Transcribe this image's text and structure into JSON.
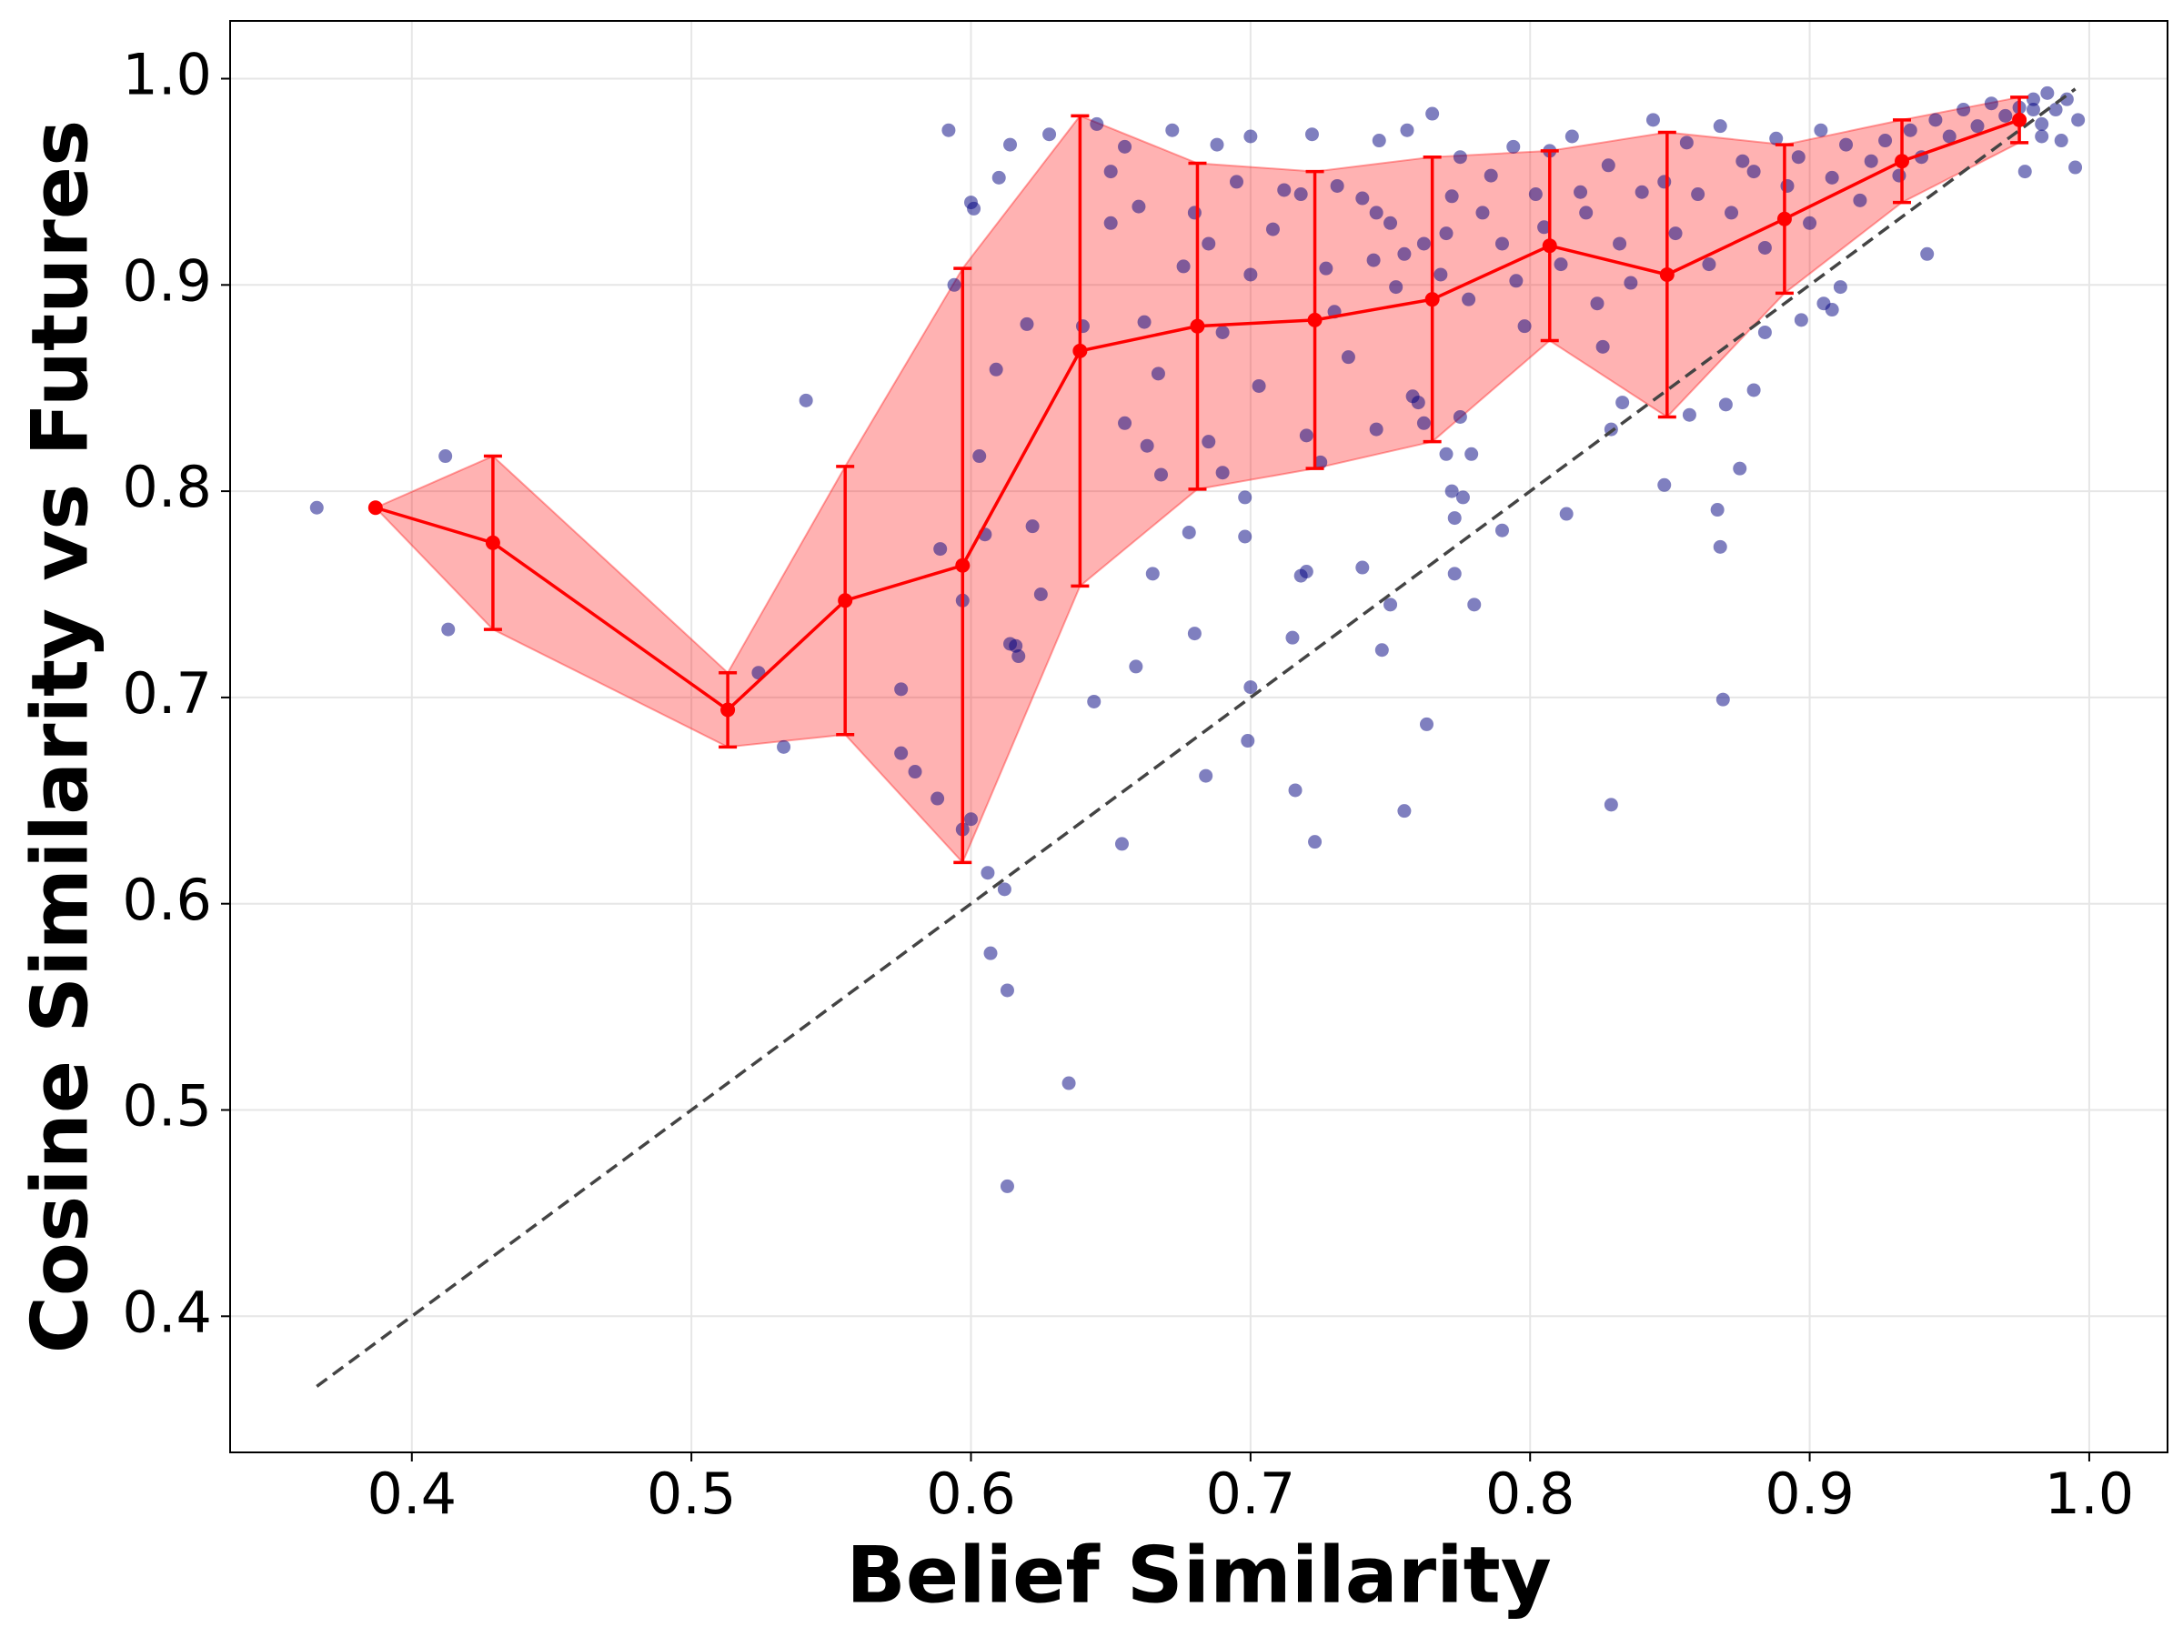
{
  "chart_data": {
    "type": "scatter",
    "xlabel": "Belief Similarity",
    "ylabel": "Cosine Similarity vs Futures",
    "xlim": [
      0.335,
      1.028
    ],
    "ylim": [
      0.334,
      1.028
    ],
    "xticks": [
      0.4,
      0.5,
      0.6,
      0.7,
      0.8,
      0.9,
      {
        "value": 1,
        "label": "1.0"
      }
    ],
    "yticks": [
      0.4,
      0.5,
      0.6,
      0.7,
      0.8,
      0.9,
      {
        "value": 1,
        "label": "1.0"
      }
    ],
    "grid": true,
    "scatter": {
      "color": "#000080",
      "x": [
        0.366,
        0.412,
        0.413,
        0.541,
        0.533,
        0.524,
        0.575,
        0.575,
        0.58,
        0.588,
        0.589,
        0.592,
        0.594,
        0.597,
        0.597,
        0.6,
        0.6,
        0.601,
        0.603,
        0.605,
        0.606,
        0.607,
        0.609,
        0.61,
        0.612,
        0.613,
        0.613,
        0.614,
        0.614,
        0.616,
        0.617,
        0.62,
        0.622,
        0.625,
        0.628,
        0.635,
        0.644,
        0.654,
        0.659,
        0.665,
        0.678,
        0.68,
        0.684,
        0.698,
        0.698,
        0.699,
        0.7,
        0.715,
        0.716,
        0.718,
        0.72,
        0.723,
        0.74,
        0.747,
        0.75,
        0.755,
        0.763,
        0.77,
        0.772,
        0.773,
        0.773,
        0.776,
        0.779,
        0.78,
        0.79,
        0.813,
        0.829,
        0.829,
        0.848,
        0.867,
        0.868,
        0.869,
        0.87,
        0.875,
        0.88,
        0.884,
        0.942,
        0.905,
        0.908,
        0.911,
        0.897,
        0.857,
        0.833,
        0.645,
        0.65,
        0.655,
        0.66,
        0.662,
        0.667,
        0.672,
        0.676,
        0.68,
        0.685,
        0.688,
        0.69,
        0.695,
        0.7,
        0.703,
        0.708,
        0.712,
        0.718,
        0.722,
        0.727,
        0.731,
        0.735,
        0.74,
        0.744,
        0.746,
        0.75,
        0.752,
        0.756,
        0.758,
        0.762,
        0.765,
        0.768,
        0.772,
        0.775,
        0.778,
        0.783,
        0.786,
        0.79,
        0.794,
        0.798,
        0.802,
        0.807,
        0.811,
        0.815,
        0.82,
        0.824,
        0.828,
        0.832,
        0.836,
        0.84,
        0.844,
        0.848,
        0.852,
        0.856,
        0.86,
        0.864,
        0.868,
        0.872,
        0.876,
        0.88,
        0.884,
        0.888,
        0.892,
        0.896,
        0.9,
        0.904,
        0.908,
        0.913,
        0.918,
        0.922,
        0.927,
        0.932,
        0.936,
        0.94,
        0.945,
        0.95,
        0.955,
        0.96,
        0.965,
        0.97,
        0.975,
        0.98,
        0.983,
        0.985,
        0.988,
        0.99,
        0.992,
        0.995,
        0.996,
        0.98,
        0.977,
        0.983,
        0.64,
        0.655,
        0.663,
        0.668,
        0.685,
        0.69,
        0.72,
        0.725,
        0.745,
        0.76,
        0.762,
        0.775,
        0.65,
        0.7,
        0.73,
        0.755,
        0.745,
        0.77,
        0.795,
        0.805,
        0.818,
        0.826
      ],
      "values": [
        0.792,
        0.817,
        0.733,
        0.844,
        0.676,
        0.712,
        0.704,
        0.673,
        0.664,
        0.651,
        0.772,
        0.975,
        0.9,
        0.747,
        0.636,
        0.641,
        0.94,
        0.937,
        0.817,
        0.779,
        0.615,
        0.576,
        0.859,
        0.952,
        0.607,
        0.558,
        0.463,
        0.726,
        0.968,
        0.725,
        0.72,
        0.881,
        0.783,
        0.75,
        0.973,
        0.513,
        0.698,
        0.629,
        0.715,
        0.76,
        0.78,
        0.731,
        0.662,
        0.797,
        0.778,
        0.679,
        0.705,
        0.729,
        0.655,
        0.759,
        0.761,
        0.63,
        0.763,
        0.723,
        0.745,
        0.645,
        0.687,
        0.818,
        0.8,
        0.787,
        0.76,
        0.797,
        0.818,
        0.745,
        0.781,
        0.789,
        0.648,
        0.83,
        0.803,
        0.791,
        0.773,
        0.699,
        0.842,
        0.811,
        0.849,
        0.877,
        0.915,
        0.891,
        0.888,
        0.899,
        0.883,
        0.837,
        0.843,
        0.978,
        0.955,
        0.967,
        0.938,
        0.882,
        0.857,
        0.975,
        0.909,
        0.935,
        0.92,
        0.968,
        0.877,
        0.95,
        0.972,
        0.851,
        0.927,
        0.946,
        0.944,
        0.973,
        0.908,
        0.948,
        0.865,
        0.942,
        0.912,
        0.97,
        0.93,
        0.899,
        0.975,
        0.846,
        0.92,
        0.983,
        0.905,
        0.943,
        0.962,
        0.893,
        0.935,
        0.953,
        0.92,
        0.967,
        0.88,
        0.944,
        0.965,
        0.91,
        0.972,
        0.935,
        0.891,
        0.958,
        0.92,
        0.901,
        0.945,
        0.98,
        0.95,
        0.925,
        0.969,
        0.944,
        0.91,
        0.977,
        0.935,
        0.96,
        0.955,
        0.918,
        0.971,
        0.948,
        0.962,
        0.93,
        0.975,
        0.952,
        0.968,
        0.941,
        0.96,
        0.97,
        0.953,
        0.975,
        0.962,
        0.98,
        0.972,
        0.985,
        0.977,
        0.988,
        0.982,
        0.986,
        0.99,
        0.978,
        0.993,
        0.985,
        0.97,
        0.99,
        0.957,
        0.98,
        0.985,
        0.955,
        0.972,
        0.88,
        0.833,
        0.822,
        0.808,
        0.824,
        0.809,
        0.827,
        0.814,
        0.83,
        0.843,
        0.833,
        0.836,
        0.93,
        0.905,
        0.887,
        0.915,
        0.935,
        0.925,
        0.902,
        0.928,
        0.945,
        0.87
      ]
    },
    "binned": {
      "color": "#ff0000",
      "band_color": "#ff0000",
      "x": [
        0.387,
        0.429,
        0.513,
        0.555,
        0.597,
        0.639,
        0.681,
        0.723,
        0.765,
        0.807,
        0.849,
        0.891,
        0.933,
        0.975
      ],
      "values": [
        0.792,
        0.775,
        0.694,
        0.747,
        0.764,
        0.868,
        0.88,
        0.883,
        0.893,
        0.919,
        0.905,
        0.932,
        0.96,
        0.98
      ],
      "errors": [
        0,
        0.042,
        0.018,
        0.065,
        0.144,
        0.114,
        0.079,
        0.072,
        0.069,
        0.046,
        0.069,
        0.036,
        0.02,
        0.011
      ]
    },
    "reference": {
      "color": "#444444",
      "x": [
        0.366,
        0.995
      ],
      "values": [
        0.366,
        0.995
      ]
    }
  }
}
